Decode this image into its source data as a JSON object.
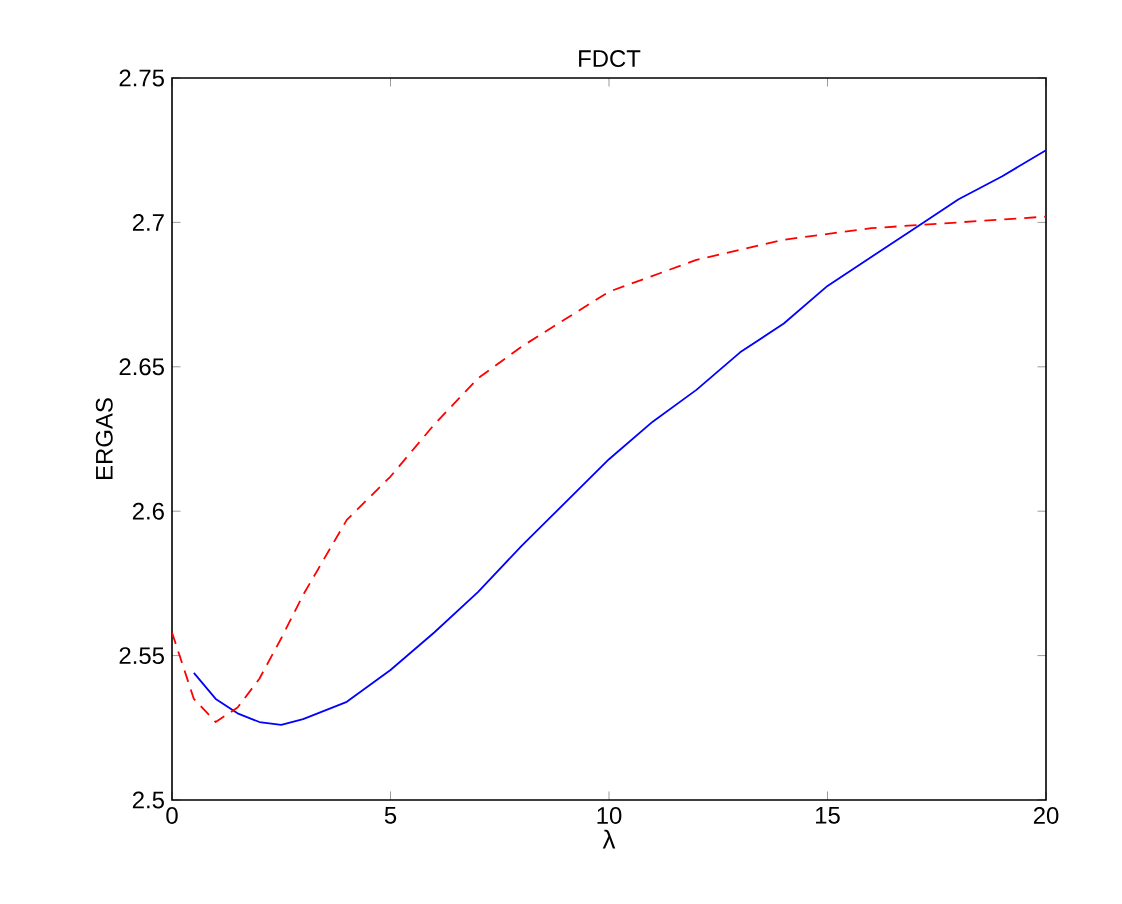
{
  "chart_data": {
    "type": "line",
    "title": "FDCT",
    "xlabel": "λ",
    "ylabel": "ERGAS",
    "xlim": [
      0,
      20
    ],
    "ylim": [
      2.5,
      2.75
    ],
    "xticks": [
      0,
      5,
      10,
      15,
      20
    ],
    "yticks": [
      2.5,
      {
        "value": 2.55,
        "label": "2.55"
      },
      2.6,
      2.65,
      2.7,
      2.75
    ],
    "series": [
      {
        "color": "#0000ff",
        "line_style": "solid",
        "x": [
          0.5,
          1,
          1.5,
          2,
          2.5,
          3,
          4,
          5,
          6,
          7,
          8,
          10,
          11,
          12,
          13,
          14,
          15,
          17,
          18,
          19,
          20
        ],
        "values": [
          2.544,
          2.535,
          2.53,
          2.527,
          2.526,
          2.528,
          2.534,
          2.545,
          2.558,
          2.572,
          2.588,
          2.618,
          2.631,
          2.642,
          2.655,
          2.665,
          2.678,
          2.698,
          2.708,
          2.716,
          2.725
        ]
      },
      {
        "color": "#ff0000",
        "line_style": "dashed",
        "x": [
          0,
          0.5,
          1,
          1.5,
          2,
          2.5,
          3,
          4,
          5,
          6,
          7,
          8,
          10,
          12,
          14,
          16,
          18,
          20
        ],
        "values": [
          2.558,
          2.535,
          2.527,
          2.532,
          2.542,
          2.556,
          2.571,
          2.597,
          2.612,
          2.63,
          2.646,
          2.657,
          2.676,
          2.687,
          2.694,
          2.698,
          2.7,
          2.702
        ]
      }
    ]
  }
}
